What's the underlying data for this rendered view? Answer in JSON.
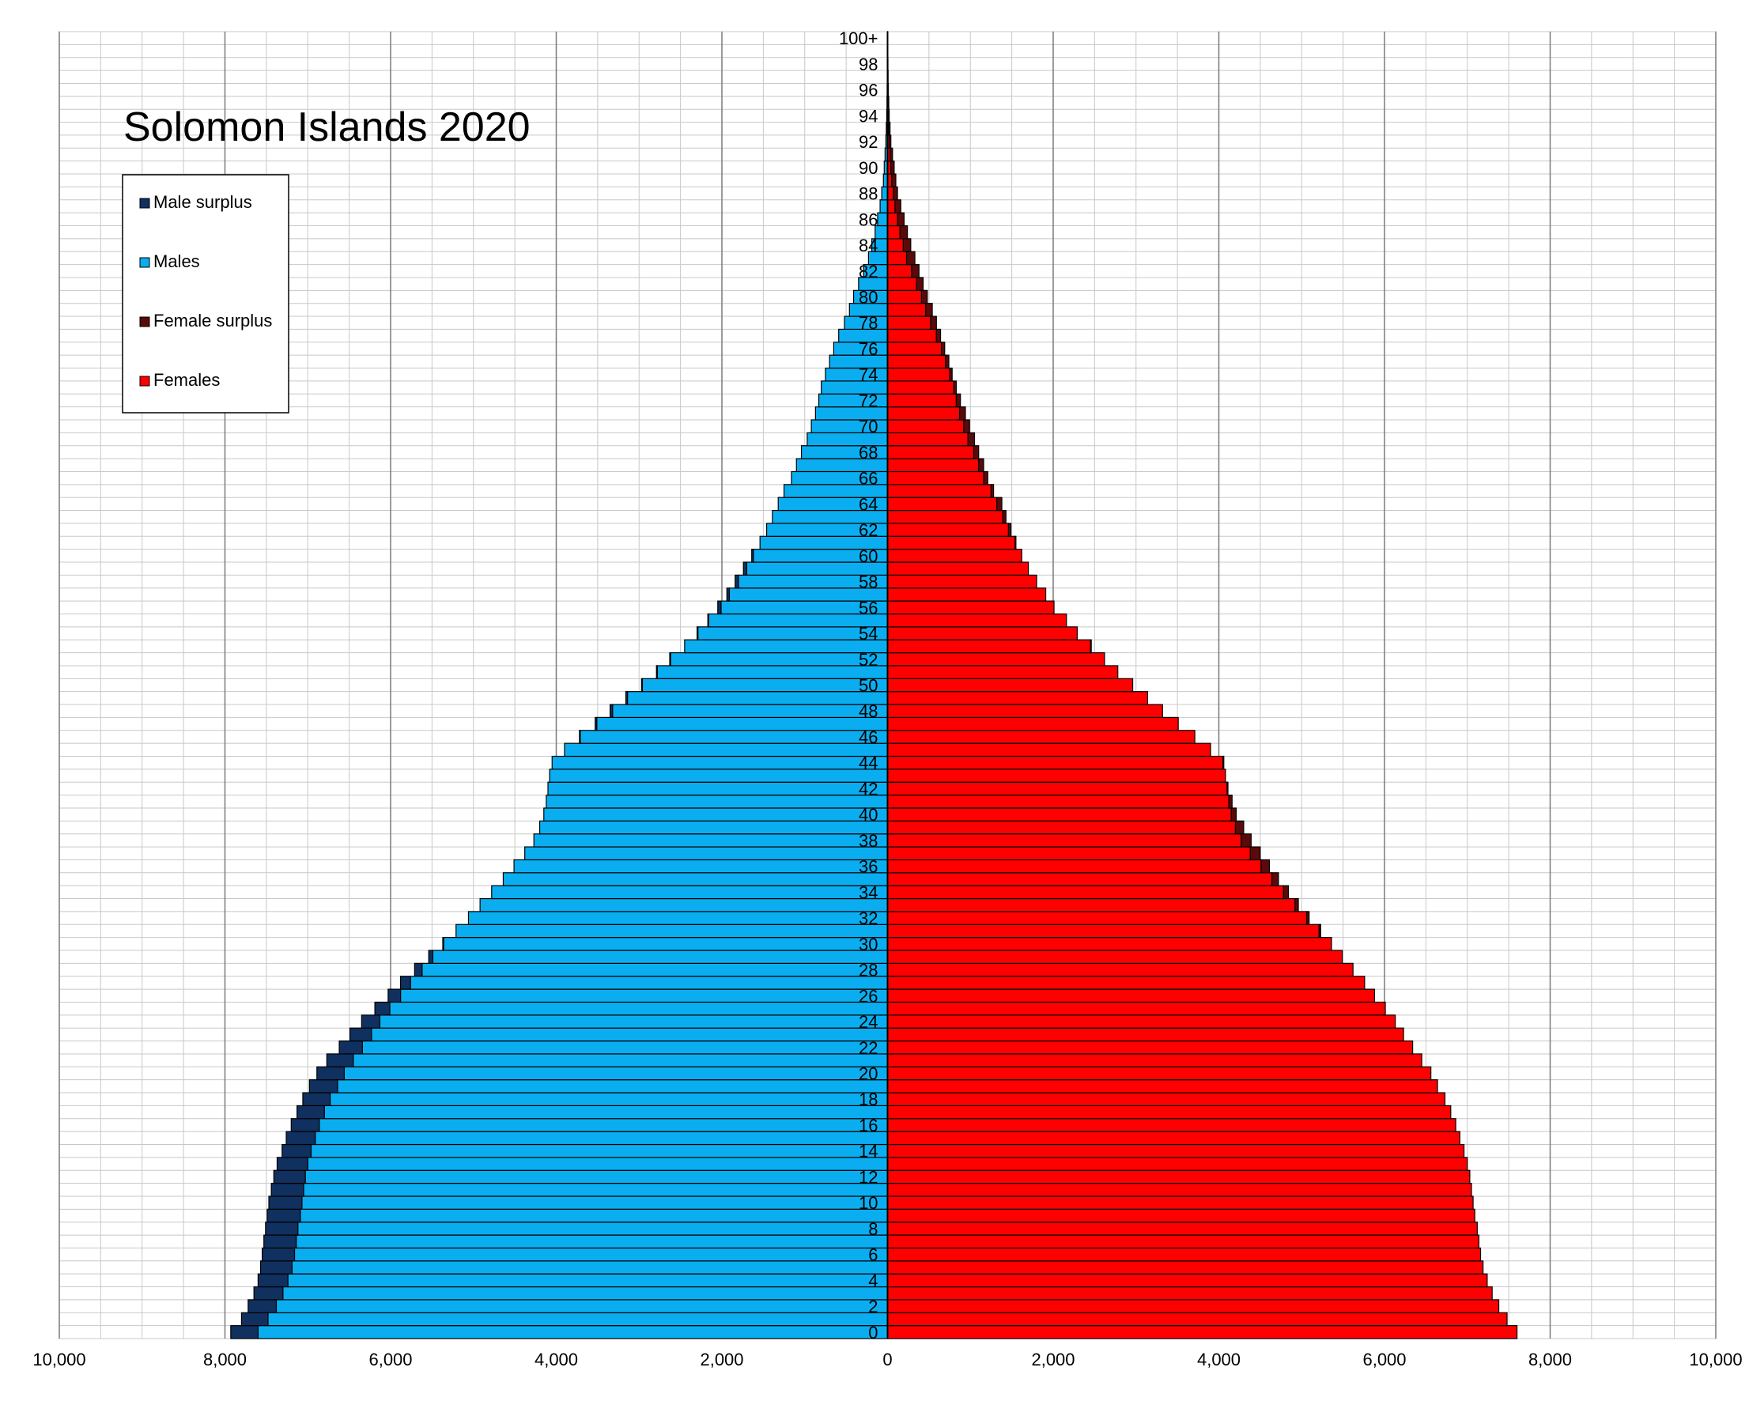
{
  "chart_data": {
    "type": "bar",
    "orientation": "horizontal-pyramid",
    "title": "Solomon Islands 2020",
    "legend": {
      "placement": "top-left",
      "entries": [
        {
          "label": "Male surplus",
          "color": "#10305f"
        },
        {
          "label": "Males",
          "color": "#0aaef0"
        },
        {
          "label": "Female surplus",
          "color": "#5a0a0a"
        },
        {
          "label": "Females",
          "color": "#ff0000"
        }
      ]
    },
    "xlim": [
      -10000,
      10000
    ],
    "x_tick_labels": [
      "10,000",
      "8,000",
      "6,000",
      "4,000",
      "2,000",
      "0",
      "2,000",
      "4,000",
      "6,000",
      "8,000",
      "10,000"
    ],
    "age_tick_labels": [
      "0",
      "2",
      "4",
      "6",
      "8",
      "10",
      "12",
      "14",
      "16",
      "18",
      "20",
      "22",
      "24",
      "26",
      "28",
      "30",
      "32",
      "34",
      "36",
      "38",
      "40",
      "42",
      "44",
      "46",
      "48",
      "50",
      "52",
      "54",
      "56",
      "58",
      "60",
      "62",
      "64",
      "66",
      "68",
      "70",
      "72",
      "74",
      "76",
      "78",
      "80",
      "82",
      "84",
      "86",
      "88",
      "90",
      "92",
      "94",
      "96",
      "98",
      "100+"
    ],
    "grid": true,
    "males": [
      7930,
      7800,
      7720,
      7650,
      7600,
      7570,
      7550,
      7530,
      7510,
      7490,
      7470,
      7440,
      7410,
      7370,
      7310,
      7260,
      7200,
      7130,
      7060,
      6980,
      6890,
      6770,
      6620,
      6490,
      6350,
      6190,
      6030,
      5880,
      5710,
      5540,
      5370,
      5210,
      5060,
      4920,
      4780,
      4640,
      4510,
      4380,
      4270,
      4200,
      4150,
      4120,
      4100,
      4080,
      4050,
      3900,
      3720,
      3530,
      3350,
      3160,
      2970,
      2790,
      2630,
      2450,
      2300,
      2170,
      2050,
      1940,
      1840,
      1740,
      1640,
      1540,
      1460,
      1390,
      1320,
      1250,
      1160,
      1100,
      1040,
      970,
      920,
      870,
      830,
      800,
      750,
      700,
      650,
      590,
      520,
      460,
      410,
      350,
      290,
      230,
      190,
      150,
      120,
      90,
      70,
      50,
      40,
      30,
      20,
      15,
      10,
      7,
      5,
      3,
      2,
      1,
      1
    ],
    "females": [
      7600,
      7480,
      7380,
      7300,
      7240,
      7190,
      7160,
      7140,
      7120,
      7090,
      7070,
      7050,
      7030,
      7000,
      6960,
      6910,
      6860,
      6800,
      6730,
      6640,
      6560,
      6450,
      6340,
      6230,
      6130,
      6010,
      5880,
      5760,
      5620,
      5490,
      5360,
      5230,
      5090,
      4960,
      4840,
      4720,
      4610,
      4500,
      4390,
      4300,
      4210,
      4160,
      4110,
      4080,
      4060,
      3900,
      3710,
      3510,
      3320,
      3140,
      2960,
      2780,
      2620,
      2460,
      2290,
      2160,
      2010,
      1910,
      1800,
      1700,
      1620,
      1550,
      1490,
      1430,
      1380,
      1280,
      1210,
      1160,
      1100,
      1050,
      990,
      940,
      880,
      830,
      780,
      740,
      690,
      640,
      590,
      540,
      480,
      430,
      380,
      330,
      280,
      240,
      200,
      160,
      120,
      100,
      80,
      60,
      40,
      30,
      20,
      15,
      10,
      7,
      5,
      3,
      2
    ]
  }
}
